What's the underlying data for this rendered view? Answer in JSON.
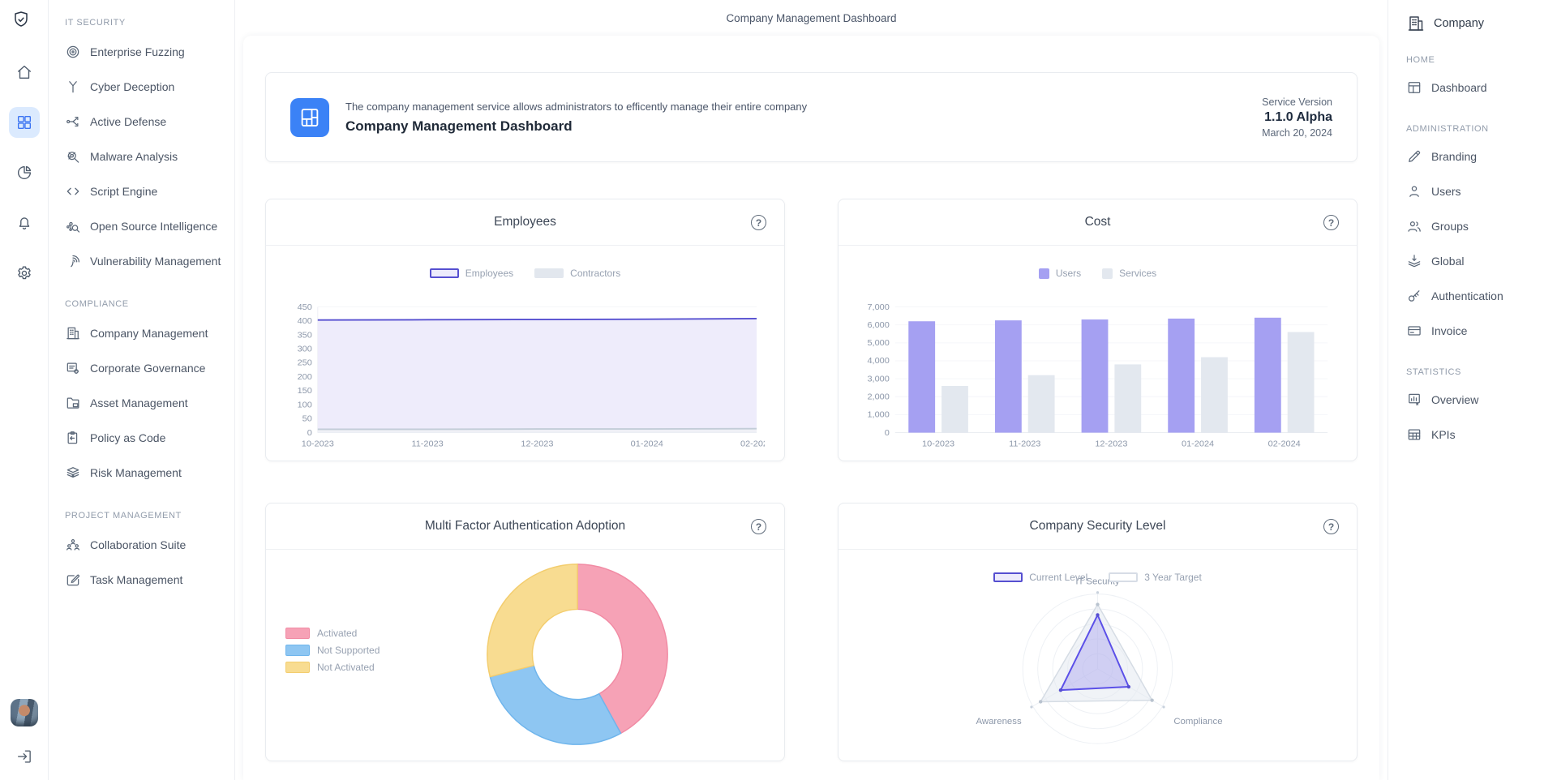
{
  "app": {
    "top_title": "Company Management Dashboard",
    "org_label": "Company"
  },
  "left_rail": {
    "logo_icon": "shield-check-icon",
    "items": [
      {
        "icon": "home-icon",
        "active": false
      },
      {
        "icon": "apps-icon",
        "active": true
      },
      {
        "icon": "pie-chart-icon",
        "active": false
      },
      {
        "icon": "bell-icon",
        "active": false
      },
      {
        "icon": "gear-icon",
        "active": false
      }
    ],
    "avatar": "user-photo",
    "signout_icon": "sign-out-icon"
  },
  "left_sidebar": {
    "sections": [
      {
        "title": "IT SECURITY",
        "items": [
          {
            "label": "Enterprise Fuzzing",
            "icon": "target-icon"
          },
          {
            "label": "Cyber Deception",
            "icon": "branch-icon"
          },
          {
            "label": "Active Defense",
            "icon": "network-arrows-icon"
          },
          {
            "label": "Malware Analysis",
            "icon": "bug-search-icon"
          },
          {
            "label": "Script Engine",
            "icon": "code-icon"
          },
          {
            "label": "Open Source Intelligence",
            "icon": "node-search-icon"
          },
          {
            "label": "Vulnerability Management",
            "icon": "fingerprint-icon"
          }
        ]
      },
      {
        "title": "COMPLIANCE",
        "items": [
          {
            "label": "Company Management",
            "icon": "building-icon"
          },
          {
            "label": "Corporate Governance",
            "icon": "list-gear-icon"
          },
          {
            "label": "Asset Management",
            "icon": "folder-icon"
          },
          {
            "label": "Policy as Code",
            "icon": "clipboard-icon"
          },
          {
            "label": "Risk Management",
            "icon": "layers-icon"
          }
        ]
      },
      {
        "title": "PROJECT MANAGEMENT",
        "items": [
          {
            "label": "Collaboration Suite",
            "icon": "team-icon"
          },
          {
            "label": "Task Management",
            "icon": "task-edit-icon"
          }
        ]
      }
    ]
  },
  "banner": {
    "icon": "dashboard-layout-icon",
    "description": "The company management service allows administrators to efficently manage their entire company",
    "title": "Company Management Dashboard",
    "service_version_label": "Service Version",
    "version": "1.1.0 Alpha",
    "date": "March 20, 2024"
  },
  "right_sidebar": {
    "org": {
      "label": "Company",
      "icon": "building-icon"
    },
    "sections": [
      {
        "title": "HOME",
        "items": [
          {
            "label": "Dashboard",
            "icon": "window-icon"
          }
        ]
      },
      {
        "title": "ADMINISTRATION",
        "items": [
          {
            "label": "Branding",
            "icon": "pencil-icon"
          },
          {
            "label": "Users",
            "icon": "user-icon"
          },
          {
            "label": "Groups",
            "icon": "users-icon"
          },
          {
            "label": "Global",
            "icon": "stack-download-icon"
          },
          {
            "label": "Authentication",
            "icon": "key-icon"
          },
          {
            "label": "Invoice",
            "icon": "credit-card-icon"
          }
        ]
      },
      {
        "title": "STATISTICS",
        "items": [
          {
            "label": "Overview",
            "icon": "report-icon"
          },
          {
            "label": "KPIs",
            "icon": "table-icon"
          }
        ]
      }
    ]
  },
  "chart_data": [
    {
      "id": "employees",
      "type": "area",
      "title": "Employees",
      "categories": [
        "10-2023",
        "11-2023",
        "12-2023",
        "01-2024",
        "02-2024"
      ],
      "series": [
        {
          "name": "Employees",
          "values": [
            403,
            404,
            405,
            406,
            408
          ],
          "color": "#564fd0",
          "fill": "#eceafb"
        },
        {
          "name": "Contractors",
          "values": [
            12,
            12,
            13,
            13,
            14
          ],
          "color": "#c3cdd8",
          "fill": "#eef1f5"
        }
      ],
      "ylim": [
        0,
        450
      ],
      "ytick_step": 50,
      "grid": true,
      "legend_position": "top"
    },
    {
      "id": "cost",
      "type": "bar",
      "title": "Cost",
      "categories": [
        "10-2023",
        "11-2023",
        "12-2023",
        "01-2024",
        "02-2024"
      ],
      "series": [
        {
          "name": "Users",
          "values": [
            6200,
            6250,
            6300,
            6350,
            6400
          ],
          "color": "#a5a0f2"
        },
        {
          "name": "Services",
          "values": [
            2600,
            3200,
            3800,
            4200,
            5600
          ],
          "color": "#e3e8ef"
        }
      ],
      "ylim": [
        0,
        7000
      ],
      "ytick_step": 1000,
      "grid": true,
      "legend_position": "top"
    },
    {
      "id": "mfa",
      "type": "pie",
      "donut": true,
      "title": "Multi Factor Authentication Adoption",
      "labels": [
        "Activated",
        "Not Supported",
        "Not Activated"
      ],
      "values": [
        42,
        29,
        29
      ],
      "colors": [
        "#f6a2b6",
        "#8ec6f2",
        "#f8dc91"
      ],
      "border_colors": [
        "#f18ba4",
        "#6fb5ec",
        "#f3cd6e"
      ],
      "legend_position": "left"
    },
    {
      "id": "security",
      "type": "radar",
      "title": "Company Security Level",
      "axes": [
        "IT Security",
        "Compliance",
        "Awareness"
      ],
      "max": 100,
      "series": [
        {
          "name": "Current Level",
          "values": [
            72,
            48,
            57
          ],
          "color": "#5b50e8",
          "fill": "rgba(124,116,235,0.28)"
        },
        {
          "name": "3 Year Target",
          "values": [
            86,
            84,
            88
          ],
          "color": "#d5dce4",
          "fill": "rgba(226,232,240,0.5)"
        }
      ],
      "legend_position": "top"
    }
  ]
}
